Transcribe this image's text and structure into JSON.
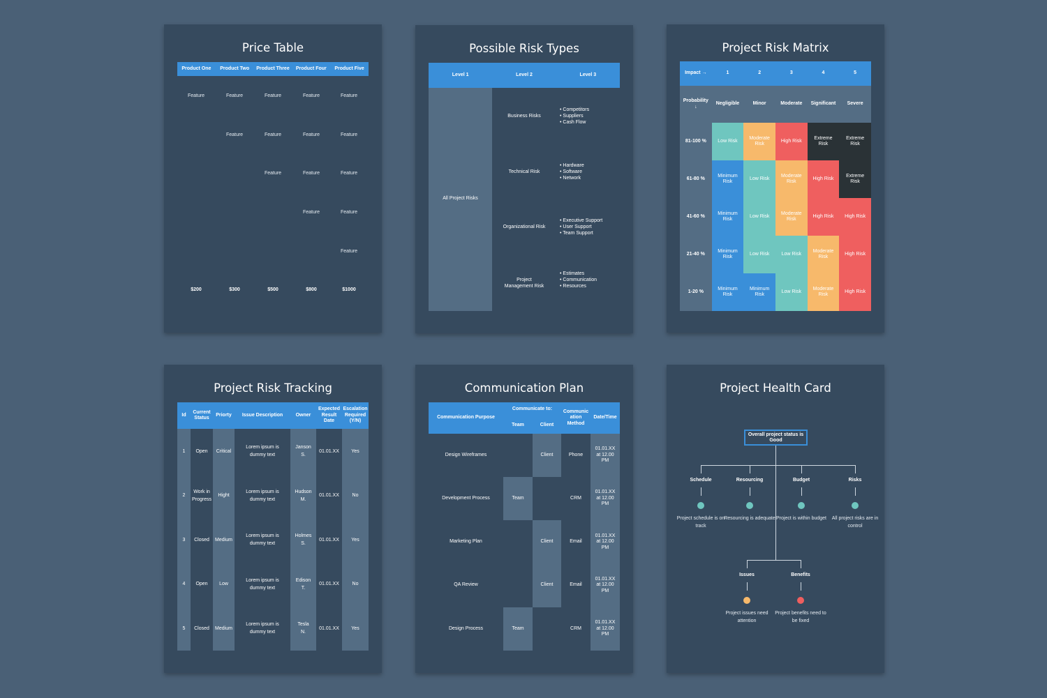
{
  "price_table": {
    "title": "Price Table",
    "headers": [
      "Product One",
      "Product Two",
      "Product Three",
      "Product Four",
      "Product Five"
    ],
    "feature_label": "Feature",
    "feature_rows": [
      [
        true,
        true,
        true,
        true,
        true
      ],
      [
        false,
        true,
        true,
        true,
        true
      ],
      [
        false,
        false,
        true,
        true,
        true
      ],
      [
        false,
        false,
        false,
        true,
        true
      ],
      [
        false,
        false,
        false,
        false,
        true
      ]
    ],
    "prices": [
      "$200",
      "$300",
      "$500",
      "$800",
      "$1000"
    ]
  },
  "risk_types": {
    "title": "Possible Risk Types",
    "headers": [
      "Level 1",
      "Level 2",
      "Level 3"
    ],
    "level1": "All Project Risks",
    "rows": [
      {
        "level2": "Business Risks",
        "level3": "• Competitors\n• Suppliers\n• Cash Flow"
      },
      {
        "level2": "Technical Risk",
        "level3": "• Hardware\n• Software\n• Network"
      },
      {
        "level2": "Organizational Risk",
        "level3": "• Executive Support\n• User Support\n• Team Support"
      },
      {
        "level2": "Project Management Risk",
        "level3": "• Estimates\n• Communication\n• Resources"
      }
    ]
  },
  "risk_matrix": {
    "title": "Project Risk Matrix",
    "impact_label": "Impact →",
    "impact_numbers": [
      "1",
      "2",
      "3",
      "4",
      "5"
    ],
    "probability_label": "Probability ↓",
    "impact_names": [
      "Negligible",
      "Minor",
      "Moderate",
      "Significant",
      "Severe"
    ],
    "rows": [
      {
        "prob": "81-100 %",
        "cells": [
          "Low Risk",
          "Moderate Risk",
          "High Risk",
          "Extreme Risk",
          "Extreme Risk"
        ]
      },
      {
        "prob": "61-80 %",
        "cells": [
          "Minimum Risk",
          "Low Risk",
          "Moderate Risk",
          "High Risk",
          "Extreme Risk"
        ]
      },
      {
        "prob": "41-60 %",
        "cells": [
          "Minimum Risk",
          "Low Risk",
          "Moderate Risk",
          "High Risk",
          "High Risk"
        ]
      },
      {
        "prob": "21-40 %",
        "cells": [
          "Minimum Risk",
          "Low Risk",
          "Low Risk",
          "Moderate Risk",
          "High Risk"
        ]
      },
      {
        "prob": "1-20 %",
        "cells": [
          "Minimum Risk",
          "Minimum Risk",
          "Low Risk",
          "Moderate Risk",
          "High Risk"
        ]
      }
    ],
    "colors": {
      "Minimum Risk": "#3a8fd9",
      "Low Risk": "#6fc6bf",
      "Moderate Risk": "#f7b96b",
      "High Risk": "#ef5f5f",
      "Extreme Risk": "#2a3236"
    }
  },
  "risk_tracking": {
    "title": "Project Risk Tracking",
    "headers": [
      "Id",
      "Current Status",
      "Priorty",
      "Issue Description",
      "Owner",
      "Expected Result Date",
      "Escalation Required (Y/N)"
    ],
    "rows": [
      [
        "1",
        "Open",
        "Critical",
        "Lorem ipsum is dummy text",
        "Janson S.",
        "01.01.XX",
        "Yes"
      ],
      [
        "2",
        "Work in Progress",
        "Hight",
        "Lorem ipsum is dummy text",
        "Hudson M.",
        "01.01.XX",
        "No"
      ],
      [
        "3",
        "Closed",
        "Medium",
        "Lorem ipsum is dummy text",
        "Holmes S.",
        "01.01.XX",
        "Yes"
      ],
      [
        "4",
        "Open",
        "Low",
        "Lorem ipsum is dummy text",
        "Edison T.",
        "01.01.XX",
        "No"
      ],
      [
        "5",
        "Closed",
        "Medium",
        "Lorem ipsum is dummy text",
        "Tesla N.",
        "01.01.XX",
        "Yes"
      ]
    ]
  },
  "comm_plan": {
    "title": "Communication Plan",
    "headers": {
      "purpose": "Communication Purpose",
      "communicate_to": "Communicate to:",
      "team": "Team",
      "client": "Client",
      "method": "Communic ation Method",
      "datetime": "Date/Time"
    },
    "rows": [
      {
        "purpose": "Design Wireframes",
        "team": "",
        "client": "Client",
        "method": "Phone",
        "datetime": "01.01.XX at 12.00 PM"
      },
      {
        "purpose": "Development Process",
        "team": "Team",
        "client": "",
        "method": "CRM",
        "datetime": "01.01.XX at 12.00 PM"
      },
      {
        "purpose": "Marketing Plan",
        "team": "",
        "client": "Client",
        "method": "Email",
        "datetime": "01.01.XX at 12.00 PM"
      },
      {
        "purpose": "QA Review",
        "team": "",
        "client": "Client",
        "method": "Email",
        "datetime": "01.01.XX at 12.00 PM"
      },
      {
        "purpose": "Design Process",
        "team": "Team",
        "client": "",
        "method": "CRM",
        "datetime": "01.01.XX at 12.00 PM"
      }
    ]
  },
  "health_card": {
    "title": "Project Health Card",
    "overall": "Overall project status is Good",
    "top_items": [
      {
        "label": "Schedule",
        "desc": "Project schedule is on track",
        "color": "#6fc6bf"
      },
      {
        "label": "Resourcing",
        "desc": "Resourcing is adequate",
        "color": "#6fc6bf"
      },
      {
        "label": "Budget",
        "desc": "Project is within budget",
        "color": "#6fc6bf"
      },
      {
        "label": "Risks",
        "desc": "All project risks are in control",
        "color": "#6fc6bf"
      }
    ],
    "bottom_items": [
      {
        "label": "Issues",
        "desc": "Project issues need attention",
        "color": "#f7b96b"
      },
      {
        "label": "Benefits",
        "desc": "Project benefits need to be fixed",
        "color": "#ef5f5f"
      }
    ]
  }
}
